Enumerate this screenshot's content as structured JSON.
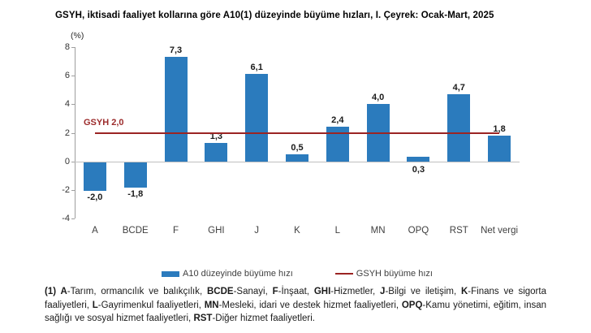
{
  "title": "GSYH, iktisadi faaliyet kollarına göre A10(1) düzeyinde büyüme hızları, I. Çeyrek: Ocak-Mart, 2025",
  "y_axis_unit": "(%)",
  "chart_data": {
    "type": "bar",
    "title": "GSYH, iktisadi faaliyet kollarına göre A10(1) düzeyinde büyüme hızları, I. Çeyrek: Ocak-Mart, 2025",
    "xlabel": "",
    "ylabel": "(%)",
    "categories": [
      "A",
      "BCDE",
      "F",
      "GHI",
      "J",
      "K",
      "L",
      "MN",
      "OPQ",
      "RST",
      "Net vergi"
    ],
    "values": [
      -2.0,
      -1.8,
      7.3,
      1.3,
      6.1,
      0.5,
      2.4,
      4.0,
      0.3,
      4.7,
      1.8
    ],
    "value_labels": [
      "-2,0",
      "-1,8",
      "7,3",
      "1,3",
      "6,1",
      "0,5",
      "2,4",
      "4,0",
      "0,3",
      "4,7",
      "1,8"
    ],
    "ylim": [
      -4,
      8
    ],
    "yticks": [
      8,
      6,
      4,
      2,
      0,
      -2,
      -4
    ],
    "grid": false,
    "legend_position": "bottom",
    "reference_line": {
      "value": 2.0,
      "label": "GSYH 2,0"
    },
    "series_name": "A10 düzeyinde büyüme hızı",
    "reference_series_name": "GSYH büyüme hızı",
    "colors": {
      "bar": "#2b7bbd",
      "reference_line": "#9b2423",
      "reference_label": "#9c2b2b",
      "axis": "#9e9e9e",
      "zero_line": "#bfbfbf"
    }
  },
  "legend": {
    "items": [
      {
        "label": "A10 düzeyinde büyüme hızı",
        "marker": "bar-swatch"
      },
      {
        "label": "GSYH büyüme hızı",
        "marker": "line-swatch"
      }
    ]
  },
  "footnote": {
    "segments": [
      {
        "t": "(1) ",
        "b": true
      },
      {
        "t": "A",
        "b": true
      },
      {
        "t": "-Tarım, ormancılık ve balıkçılık, ",
        "b": false
      },
      {
        "t": "BCDE",
        "b": true
      },
      {
        "t": "-Sanayi, ",
        "b": false
      },
      {
        "t": "F",
        "b": true
      },
      {
        "t": "-İnşaat, ",
        "b": false
      },
      {
        "t": "GHI",
        "b": true
      },
      {
        "t": "-Hizmetler, ",
        "b": false
      },
      {
        "t": "J",
        "b": true
      },
      {
        "t": "-Bilgi ve iletişim, ",
        "b": false
      },
      {
        "t": "K",
        "b": true
      },
      {
        "t": "-Finans ve sigorta faaliyetleri, ",
        "b": false
      },
      {
        "t": "L",
        "b": true
      },
      {
        "t": "-Gayrimenkul faaliyetleri, ",
        "b": false
      },
      {
        "t": "MN",
        "b": true
      },
      {
        "t": "-Mesleki, idari ve destek hizmet faaliyetleri, ",
        "b": false
      },
      {
        "t": "OPQ",
        "b": true
      },
      {
        "t": "-Kamu yönetimi, eğitim, insan sağlığı ve sosyal hizmet faaliyetleri, ",
        "b": false
      },
      {
        "t": "RST",
        "b": true
      },
      {
        "t": "-Diğer hizmet faaliyetleri.",
        "b": false
      }
    ]
  }
}
